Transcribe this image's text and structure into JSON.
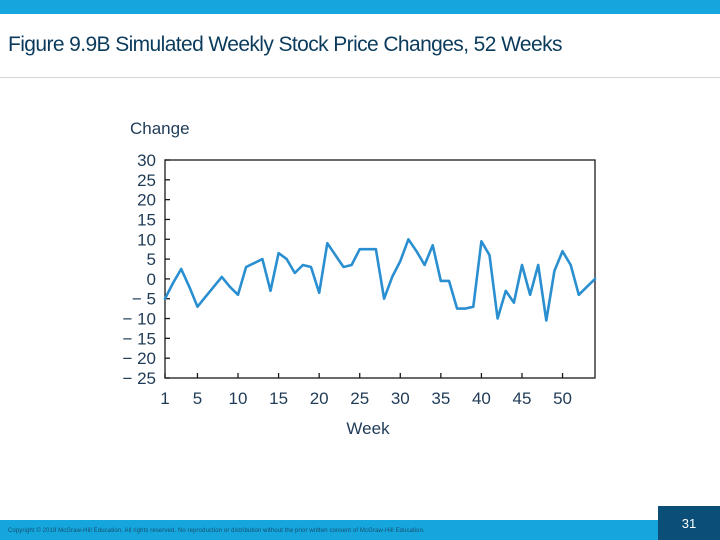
{
  "slide": {
    "title": "Figure 9.9B Simulated Weekly Stock Price Changes, 52 Weeks",
    "copyright": "Copyright © 2019 McGraw-Hill Education. All rights reserved. No reproduction or distribution without the prior written consent of McGraw-Hill Education.",
    "page_number": "31"
  },
  "colors": {
    "accent_bar": "#14a6dc",
    "title_text": "#0b3b5c",
    "series_line": "#2a8fd0",
    "page_box": "#0b4f78"
  },
  "chart_data": {
    "type": "line",
    "title": "",
    "xlabel": "Week",
    "ylabel": "Change",
    "xlim": [
      1,
      54
    ],
    "ylim": [
      -25,
      30
    ],
    "xticks": [
      1,
      5,
      10,
      15,
      20,
      25,
      30,
      35,
      40,
      45,
      50
    ],
    "yticks": [
      30,
      25,
      20,
      15,
      10,
      5,
      0,
      -5,
      -10,
      -15,
      -20,
      -25
    ],
    "ytick_labels": [
      "30",
      "25",
      "20",
      "15",
      "10",
      "5",
      "0",
      "− 5",
      "− 10",
      "− 15",
      "− 20",
      "− 25"
    ],
    "grid": false,
    "series": [
      {
        "x": [
          1,
          2,
          3,
          4,
          5,
          6,
          7,
          8,
          9,
          10,
          11,
          12,
          13,
          14,
          15,
          16,
          17,
          18,
          19,
          20,
          21,
          22,
          23,
          24,
          25,
          26,
          27,
          28,
          29,
          30,
          31,
          32,
          33,
          34,
          35,
          36,
          37,
          38,
          39,
          40,
          41,
          42,
          43,
          44,
          45,
          46,
          47,
          48,
          49,
          50,
          51,
          52,
          53,
          54
        ],
        "values": [
          -5,
          -1,
          2.5,
          -2,
          -7,
          -4.5,
          -2,
          0.5,
          -2,
          -4,
          3,
          4,
          5,
          -3,
          6.5,
          5,
          1.5,
          3.5,
          3,
          -3.5,
          9,
          6,
          3,
          3.5,
          7.5,
          7.5,
          7.5,
          -5,
          0.5,
          4.5,
          10,
          7,
          3.5,
          8.5,
          -0.5,
          -0.5,
          -7.5,
          -7.5,
          -7,
          9.5,
          6,
          -10,
          -3,
          -6,
          3.5,
          -4,
          3.5,
          -10.5,
          2,
          7,
          3.5,
          -4,
          -2,
          0
        ]
      }
    ]
  }
}
